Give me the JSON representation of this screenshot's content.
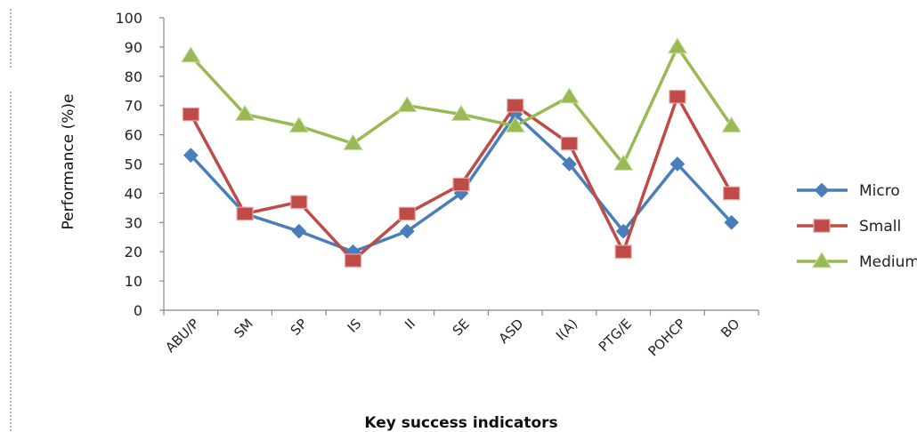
{
  "chart_data": {
    "type": "line",
    "categories": [
      "ABU/P",
      "SM",
      "SP",
      "IS",
      "II",
      "SE",
      "ASD",
      "I(A)",
      "PTG/E",
      "POHCP",
      "BO"
    ],
    "series": [
      {
        "name": "Micro",
        "color": "#4a7ebb",
        "marker": "diamond",
        "values": [
          53,
          33,
          27,
          20,
          27,
          40,
          67,
          50,
          27,
          50,
          30
        ]
      },
      {
        "name": "Small",
        "color": "#be4b48",
        "marker": "square",
        "values": [
          67,
          33,
          37,
          17,
          33,
          43,
          70,
          57,
          20,
          73,
          40
        ]
      },
      {
        "name": "Medium",
        "color": "#98b954",
        "marker": "triangle",
        "values": [
          87,
          67,
          63,
          57,
          70,
          67,
          63,
          73,
          50,
          90,
          63
        ]
      }
    ],
    "ylabel": "Performance (%)e",
    "xlabel": "Key success indicators",
    "ylim": [
      0,
      100
    ],
    "yticks": [
      0,
      10,
      20,
      30,
      40,
      50,
      60,
      70,
      80,
      90,
      100
    ],
    "grid": false,
    "legend_position": "right"
  }
}
